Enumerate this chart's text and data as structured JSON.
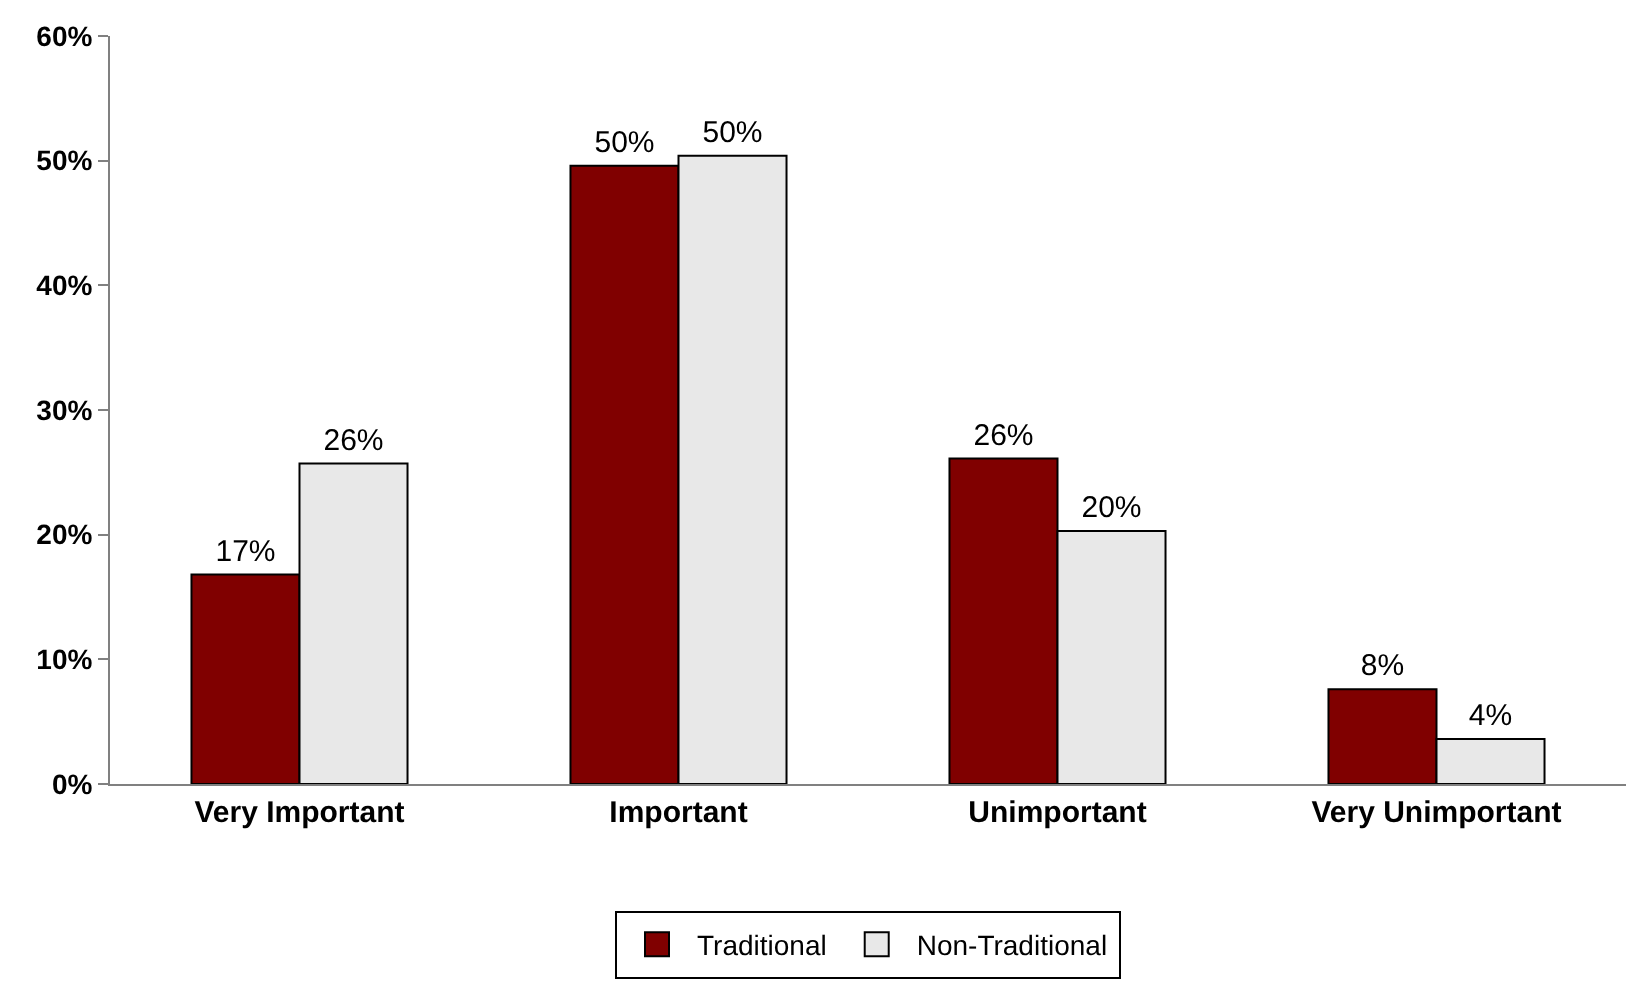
{
  "chart_data": {
    "type": "bar",
    "categories": [
      "Very Important",
      "Important",
      "Unimportant",
      "Very Unimportant"
    ],
    "series": [
      {
        "name": "Traditional",
        "color": "#800000",
        "values": [
          16.8,
          49.6,
          26.1,
          7.6
        ],
        "value_labels": [
          "17%",
          "50%",
          "26%",
          "8%"
        ]
      },
      {
        "name": "Non-Traditional",
        "color": "#e8e8e8",
        "values": [
          25.7,
          50.4,
          20.3,
          3.6
        ],
        "value_labels": [
          "26%",
          "50%",
          "20%",
          "4%"
        ]
      }
    ],
    "ylim": [
      0,
      60
    ],
    "yticks": [
      {
        "value": 0,
        "label": "0%"
      },
      {
        "value": 10,
        "label": "10%"
      },
      {
        "value": 20,
        "label": "20%"
      },
      {
        "value": 30,
        "label": "30%"
      },
      {
        "value": 40,
        "label": "40%"
      },
      {
        "value": 50,
        "label": "50%"
      },
      {
        "value": 60,
        "label": "60%"
      }
    ],
    "grid": false,
    "legend": "bottom"
  }
}
